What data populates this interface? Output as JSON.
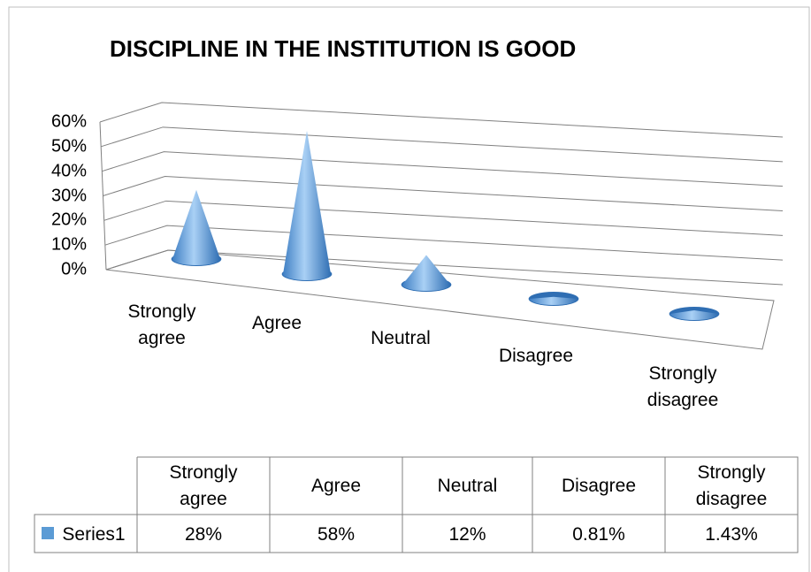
{
  "chart_data": {
    "type": "cone3d",
    "title": "DISCIPLINE IN THE INSTITUTION IS GOOD",
    "categories": [
      "Strongly agree",
      "Agree",
      "Neutral",
      "Disagree",
      "Strongly disagree"
    ],
    "series": [
      {
        "name": "Series1",
        "color": "#5b9bd5",
        "values": [
          28,
          58,
          12,
          0.81,
          1.43
        ],
        "value_labels": [
          "28%",
          "58%",
          "12%",
          "0.81%",
          "1.43%"
        ]
      }
    ],
    "ylim": [
      0,
      60
    ],
    "yticks": [
      {
        "value": 0,
        "label": "0%"
      },
      {
        "value": 10,
        "label": "10%"
      },
      {
        "value": 20,
        "label": "20%"
      },
      {
        "value": 30,
        "label": "30%"
      },
      {
        "value": 40,
        "label": "40%"
      },
      {
        "value": 50,
        "label": "50%"
      },
      {
        "value": 60,
        "label": "60%"
      }
    ],
    "grid": true
  }
}
